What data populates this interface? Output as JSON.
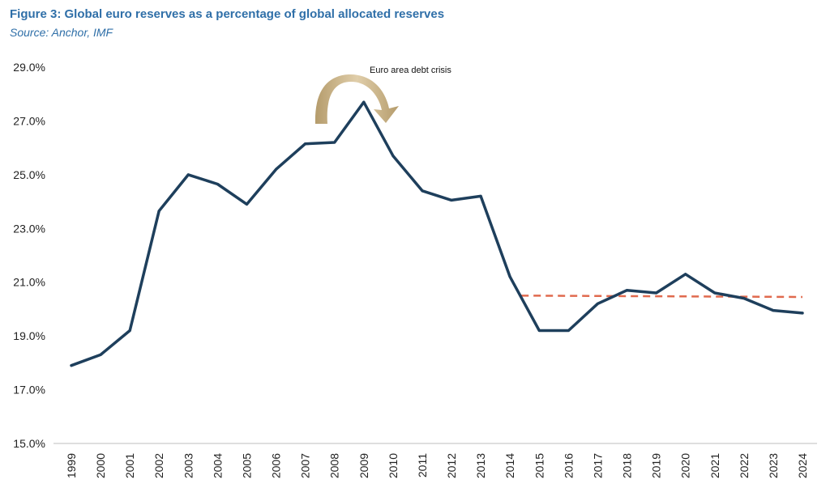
{
  "header": {
    "title": "Figure 3: Global euro reserves as a percentage of global allocated reserves",
    "source": "Source: Anchor, IMF"
  },
  "chart_data": {
    "type": "line",
    "title": "Figure 3: Global euro reserves as a percentage of global allocated reserves",
    "subtitle": "Source: Anchor, IMF",
    "xlabel": "",
    "ylabel": "",
    "ylim": [
      15.0,
      29.0
    ],
    "y_ticks": [
      "15.0%",
      "17.0%",
      "19.0%",
      "21.0%",
      "23.0%",
      "25.0%",
      "27.0%",
      "29.0%"
    ],
    "y_tick_values": [
      15,
      17,
      19,
      21,
      23,
      25,
      27,
      29
    ],
    "categories": [
      "1999",
      "2000",
      "2001",
      "2002",
      "2003",
      "2004",
      "2005",
      "2006",
      "2007",
      "2008",
      "2009",
      "2010",
      "2011",
      "2012",
      "2013",
      "2014",
      "2015",
      "2016",
      "2017",
      "2018",
      "2019",
      "2020",
      "2021",
      "2022",
      "2023",
      "2024"
    ],
    "series": [
      {
        "values": [
          17.9,
          18.3,
          19.2,
          23.65,
          25.0,
          24.65,
          23.9,
          25.2,
          26.15,
          26.2,
          27.7,
          25.7,
          24.4,
          24.05,
          24.2,
          21.2,
          19.2,
          19.2,
          20.2,
          20.7,
          20.6,
          21.3,
          20.6,
          20.4,
          19.95,
          19.85
        ],
        "color": "#1e3f5c"
      }
    ],
    "trendline": {
      "style": "dashed",
      "color": "#e06a4e",
      "start_category": "2014",
      "end_category": "2024",
      "values": [
        20.5,
        20.45
      ]
    },
    "annotations": [
      {
        "text": "Euro area debt crisis",
        "near_category": "2009",
        "icon": "curved-arrow-icon"
      }
    ],
    "grid": false,
    "legend": "none"
  }
}
